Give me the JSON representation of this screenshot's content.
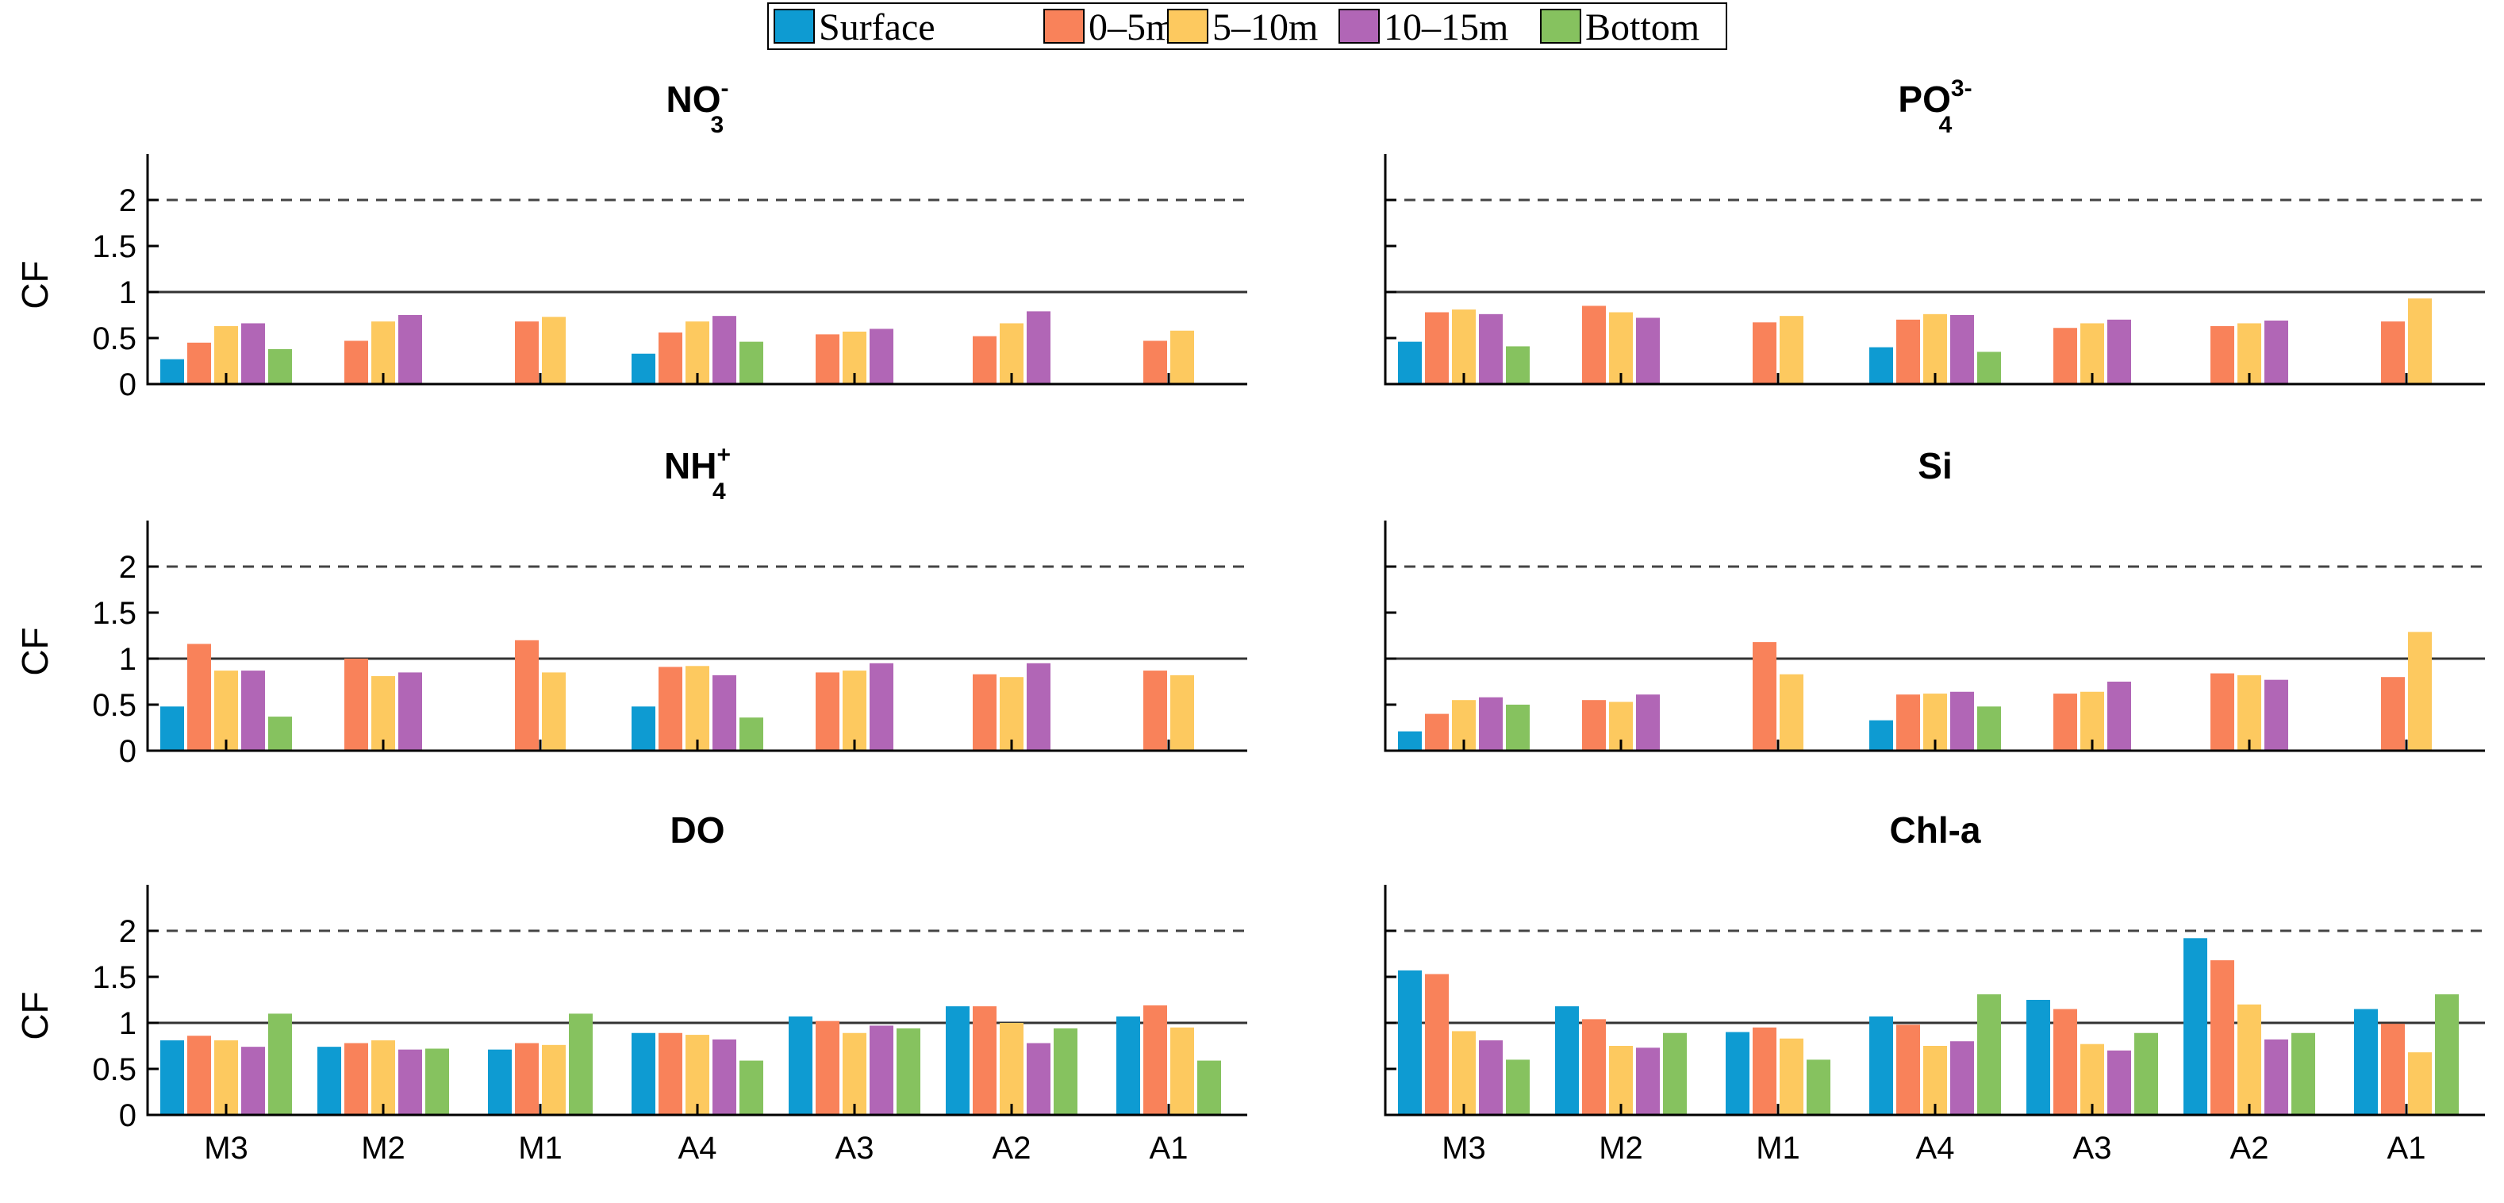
{
  "legend": [
    "Surface",
    "0–5m",
    "5–10m",
    "10–15m",
    "Bottom"
  ],
  "colors": [
    "#0E9BD2",
    "#F9825A",
    "#FDC95F",
    "#B166B6",
    "#86C25F"
  ],
  "chart_data": [
    {
      "type": "bar",
      "title": "NO",
      "title_sub": "3",
      "title_sup": "-",
      "xlabel": "",
      "ylabel": "CF",
      "ylim": [
        0,
        2.5
      ],
      "yticks": [
        "0",
        "0.5",
        "1",
        "1.5",
        "2"
      ],
      "reference_lines": [
        {
          "value": 1,
          "style": "solid"
        },
        {
          "value": 2,
          "style": "dashed"
        }
      ],
      "categories": [
        "M3",
        "M2",
        "M1",
        "A4",
        "A3",
        "A2",
        "A1"
      ],
      "series": [
        {
          "name": "Surface",
          "values": [
            0.27,
            null,
            null,
            0.33,
            null,
            null,
            null
          ]
        },
        {
          "name": "0–5m",
          "values": [
            0.45,
            0.47,
            0.68,
            0.56,
            0.54,
            0.52,
            0.47
          ]
        },
        {
          "name": "5–10m",
          "values": [
            0.63,
            0.68,
            0.73,
            0.68,
            0.57,
            0.66,
            0.58
          ]
        },
        {
          "name": "10–15m",
          "values": [
            0.66,
            0.75,
            null,
            0.74,
            0.6,
            0.79,
            null
          ]
        },
        {
          "name": "Bottom",
          "values": [
            0.38,
            null,
            null,
            0.46,
            null,
            null,
            null
          ]
        }
      ]
    },
    {
      "type": "bar",
      "title": "PO",
      "title_sub": "4",
      "title_sup": "3-",
      "xlabel": "",
      "ylabel": "",
      "ylim": [
        0,
        2.5
      ],
      "yticks": [],
      "reference_lines": [
        {
          "value": 1,
          "style": "solid"
        },
        {
          "value": 2,
          "style": "dashed"
        }
      ],
      "categories": [
        "M3",
        "M2",
        "M1",
        "A4",
        "A3",
        "A2",
        "A1"
      ],
      "series": [
        {
          "name": "Surface",
          "values": [
            0.46,
            null,
            null,
            0.4,
            null,
            null,
            null
          ]
        },
        {
          "name": "0–5m",
          "values": [
            0.78,
            0.85,
            0.67,
            0.7,
            0.61,
            0.63,
            0.68
          ]
        },
        {
          "name": "5–10m",
          "values": [
            0.81,
            0.78,
            0.74,
            0.76,
            0.66,
            0.66,
            0.93
          ]
        },
        {
          "name": "10–15m",
          "values": [
            0.76,
            0.72,
            null,
            0.75,
            0.7,
            0.69,
            null
          ]
        },
        {
          "name": "Bottom",
          "values": [
            0.41,
            null,
            null,
            0.35,
            null,
            null,
            null
          ]
        }
      ]
    },
    {
      "type": "bar",
      "title": "NH",
      "title_sub": "4",
      "title_sup": "+",
      "xlabel": "",
      "ylabel": "CF",
      "ylim": [
        0,
        2.5
      ],
      "yticks": [
        "0",
        "0.5",
        "1",
        "1.5",
        "2"
      ],
      "reference_lines": [
        {
          "value": 1,
          "style": "solid"
        },
        {
          "value": 2,
          "style": "dashed"
        }
      ],
      "categories": [
        "M3",
        "M2",
        "M1",
        "A4",
        "A3",
        "A2",
        "A1"
      ],
      "series": [
        {
          "name": "Surface",
          "values": [
            0.48,
            null,
            null,
            0.48,
            null,
            null,
            null
          ]
        },
        {
          "name": "0–5m",
          "values": [
            1.16,
            1.0,
            1.2,
            0.91,
            0.85,
            0.83,
            0.87
          ]
        },
        {
          "name": "5–10m",
          "values": [
            0.87,
            0.81,
            0.85,
            0.92,
            0.87,
            0.8,
            0.82
          ]
        },
        {
          "name": "10–15m",
          "values": [
            0.87,
            0.85,
            null,
            0.82,
            0.95,
            0.95,
            null
          ]
        },
        {
          "name": "Bottom",
          "values": [
            0.37,
            null,
            null,
            0.36,
            null,
            null,
            null
          ]
        }
      ]
    },
    {
      "type": "bar",
      "title": "Si",
      "title_sub": "",
      "title_sup": "",
      "xlabel": "",
      "ylabel": "",
      "ylim": [
        0,
        2.5
      ],
      "yticks": [],
      "reference_lines": [
        {
          "value": 1,
          "style": "solid"
        },
        {
          "value": 2,
          "style": "dashed"
        }
      ],
      "categories": [
        "M3",
        "M2",
        "M1",
        "A4",
        "A3",
        "A2",
        "A1"
      ],
      "series": [
        {
          "name": "Surface",
          "values": [
            0.21,
            null,
            null,
            0.33,
            null,
            null,
            null
          ]
        },
        {
          "name": "0–5m",
          "values": [
            0.4,
            0.55,
            1.18,
            0.61,
            0.62,
            0.84,
            0.8
          ]
        },
        {
          "name": "5–10m",
          "values": [
            0.55,
            0.53,
            0.83,
            0.62,
            0.64,
            0.82,
            1.29
          ]
        },
        {
          "name": "10–15m",
          "values": [
            0.58,
            0.61,
            null,
            0.64,
            0.75,
            0.77,
            null
          ]
        },
        {
          "name": "Bottom",
          "values": [
            0.5,
            null,
            null,
            0.48,
            null,
            null,
            null
          ]
        }
      ]
    },
    {
      "type": "bar",
      "title": "DO",
      "title_sub": "",
      "title_sup": "",
      "xlabel": "",
      "ylabel": "CF",
      "ylim": [
        0,
        2.5
      ],
      "yticks": [
        "0",
        "0.5",
        "1",
        "1.5",
        "2"
      ],
      "reference_lines": [
        {
          "value": 1,
          "style": "solid"
        },
        {
          "value": 2,
          "style": "dashed"
        }
      ],
      "categories": [
        "M3",
        "M2",
        "M1",
        "A4",
        "A3",
        "A2",
        "A1"
      ],
      "series": [
        {
          "name": "Surface",
          "values": [
            0.81,
            0.74,
            0.71,
            0.89,
            1.07,
            1.18,
            1.07
          ]
        },
        {
          "name": "0–5m",
          "values": [
            0.86,
            0.78,
            0.78,
            0.89,
            1.02,
            1.18,
            1.19
          ]
        },
        {
          "name": "5–10m",
          "values": [
            0.81,
            0.81,
            0.76,
            0.87,
            0.89,
            1.0,
            0.95
          ]
        },
        {
          "name": "10–15m",
          "values": [
            0.74,
            0.71,
            null,
            0.82,
            0.97,
            0.78,
            null
          ]
        },
        {
          "name": "Bottom",
          "values": [
            1.1,
            0.72,
            1.1,
            0.59,
            0.94,
            0.94,
            0.59
          ]
        }
      ]
    },
    {
      "type": "bar",
      "title": "Chl-a",
      "title_sub": "",
      "title_sup": "",
      "xlabel": "",
      "ylabel": "",
      "ylim": [
        0,
        2.5
      ],
      "yticks": [],
      "reference_lines": [
        {
          "value": 1,
          "style": "solid"
        },
        {
          "value": 2,
          "style": "dashed"
        }
      ],
      "categories": [
        "M3",
        "M2",
        "M1",
        "A4",
        "A3",
        "A2",
        "A1"
      ],
      "series": [
        {
          "name": "Surface",
          "values": [
            1.57,
            1.18,
            0.9,
            1.07,
            1.25,
            1.92,
            1.15
          ]
        },
        {
          "name": "0–5m",
          "values": [
            1.53,
            1.04,
            0.95,
            0.98,
            1.15,
            1.68,
            0.99
          ]
        },
        {
          "name": "5–10m",
          "values": [
            0.91,
            0.75,
            0.83,
            0.75,
            0.77,
            1.2,
            0.68
          ]
        },
        {
          "name": "10–15m",
          "values": [
            0.81,
            0.73,
            null,
            0.8,
            0.7,
            0.82,
            null
          ]
        },
        {
          "name": "Bottom",
          "values": [
            0.6,
            0.89,
            0.6,
            1.31,
            0.89,
            0.89,
            1.31
          ]
        }
      ]
    }
  ]
}
